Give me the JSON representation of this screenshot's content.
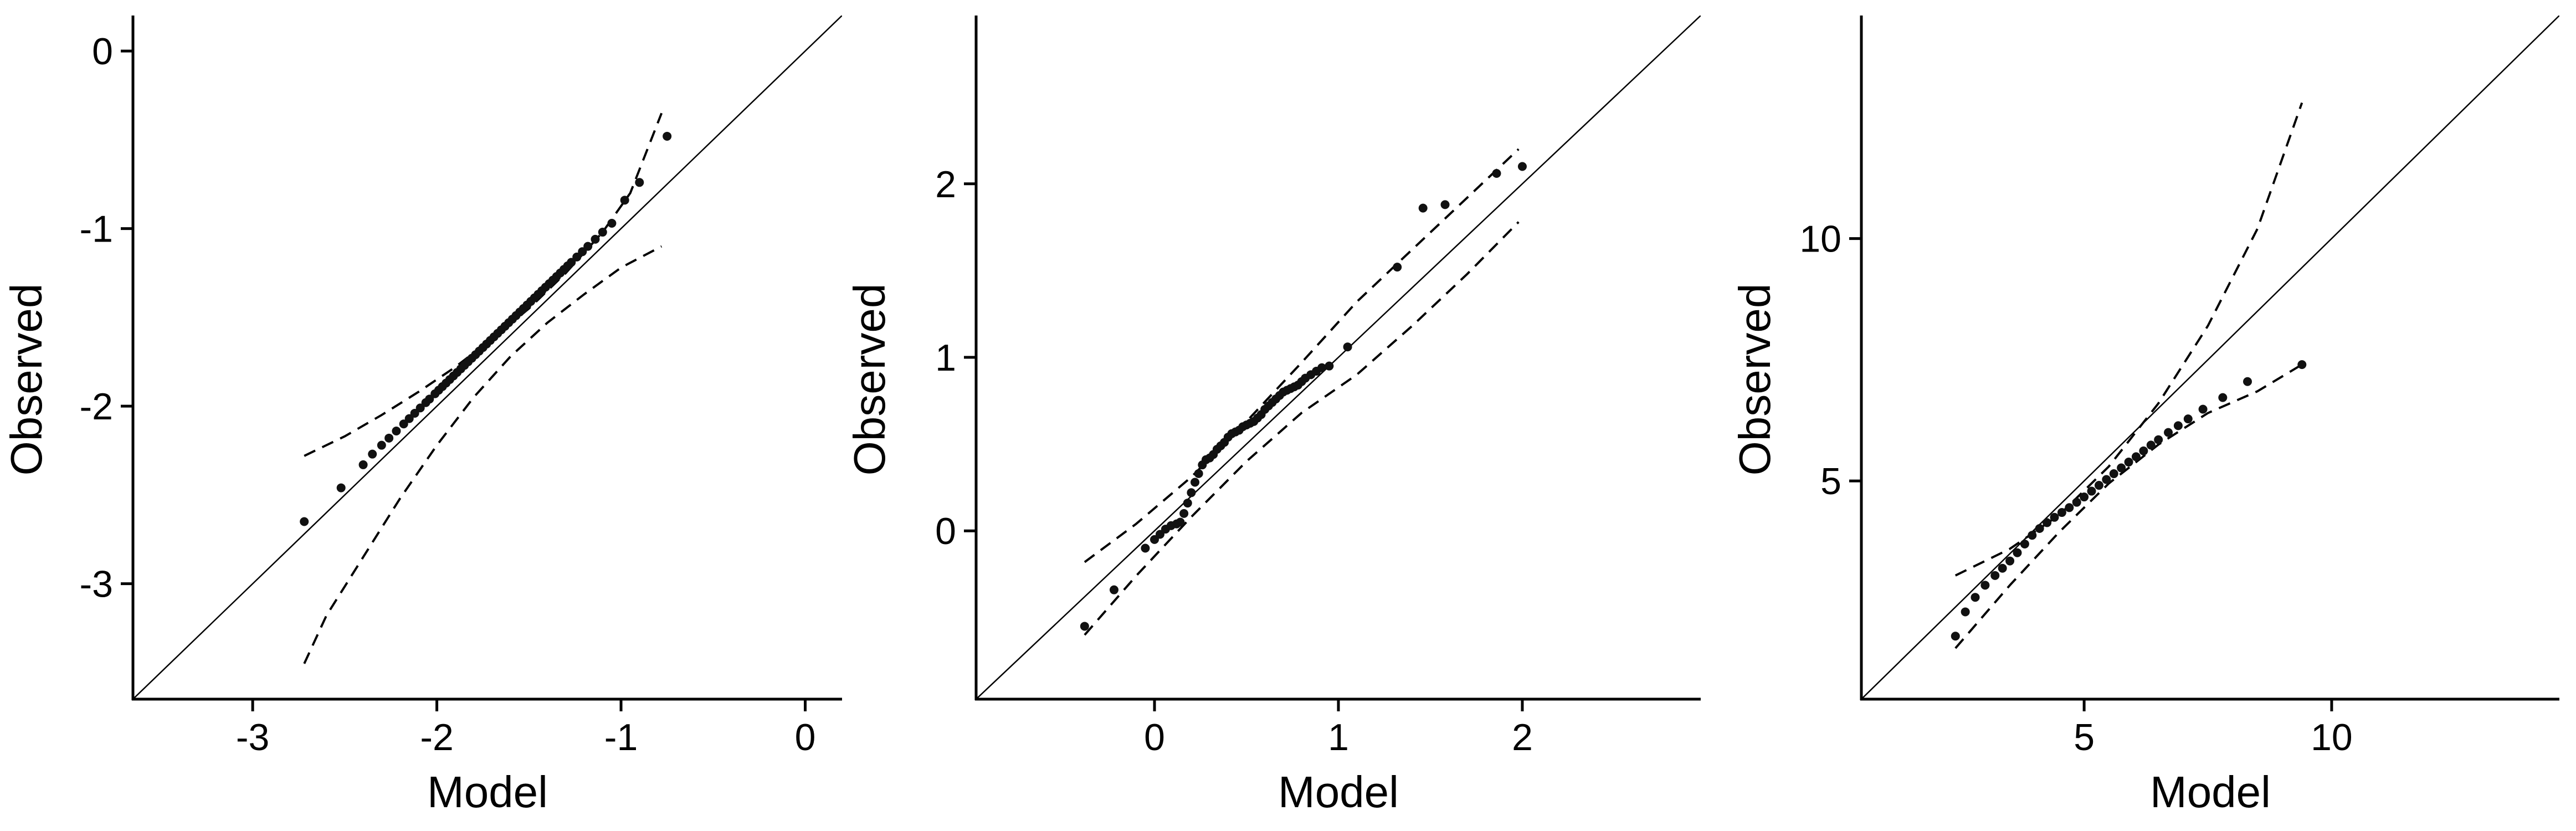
{
  "chart_data": [
    {
      "type": "scatter",
      "title": "",
      "xlabel": "Model",
      "ylabel": "Observed",
      "xlim": [
        -3.65,
        0.2
      ],
      "ylim": [
        -3.65,
        0.2
      ],
      "xticks": [
        -3,
        -2,
        -1,
        0
      ],
      "xtick_labels": [
        "-3",
        "-2",
        "-1",
        "0"
      ],
      "yticks": [
        -3,
        -2,
        -1,
        0
      ],
      "ytick_labels": [
        "-3",
        "-2",
        "-1",
        "0"
      ],
      "grid": false,
      "reference_line": "y = x",
      "points": {
        "x": [
          -2.72,
          -2.52,
          -2.4,
          -2.35,
          -2.3,
          -2.26,
          -2.22,
          -2.18,
          -2.15,
          -2.12,
          -2.09,
          -2.06,
          -2.04,
          -2.01,
          -1.99,
          -1.97,
          -1.95,
          -1.93,
          -1.91,
          -1.89,
          -1.87,
          -1.85,
          -1.83,
          -1.81,
          -1.79,
          -1.77,
          -1.75,
          -1.73,
          -1.71,
          -1.69,
          -1.67,
          -1.65,
          -1.63,
          -1.61,
          -1.59,
          -1.57,
          -1.55,
          -1.53,
          -1.51,
          -1.49,
          -1.47,
          -1.45,
          -1.43,
          -1.41,
          -1.39,
          -1.37,
          -1.35,
          -1.33,
          -1.31,
          -1.29,
          -1.27,
          -1.24,
          -1.21,
          -1.18,
          -1.14,
          -1.1,
          -1.05,
          -0.98,
          -0.9,
          -0.75
        ],
        "y": [
          -2.65,
          -2.46,
          -2.33,
          -2.27,
          -2.22,
          -2.18,
          -2.14,
          -2.1,
          -2.07,
          -2.04,
          -2.01,
          -1.98,
          -1.96,
          -1.93,
          -1.91,
          -1.89,
          -1.87,
          -1.85,
          -1.83,
          -1.81,
          -1.79,
          -1.77,
          -1.75,
          -1.73,
          -1.71,
          -1.69,
          -1.67,
          -1.65,
          -1.63,
          -1.61,
          -1.59,
          -1.57,
          -1.55,
          -1.53,
          -1.51,
          -1.49,
          -1.47,
          -1.45,
          -1.43,
          -1.41,
          -1.39,
          -1.37,
          -1.35,
          -1.33,
          -1.31,
          -1.29,
          -1.27,
          -1.25,
          -1.23,
          -1.21,
          -1.19,
          -1.16,
          -1.13,
          -1.1,
          -1.06,
          -1.02,
          -0.97,
          -0.84,
          -0.74,
          -0.48
        ]
      },
      "envelope_upper": {
        "x": [
          -2.72,
          -2.5,
          -2.3,
          -2.1,
          -1.9,
          -1.7,
          -1.5,
          -1.3,
          -1.1,
          -0.95,
          -0.78
        ],
        "y": [
          -2.28,
          -2.17,
          -2.05,
          -1.92,
          -1.78,
          -1.62,
          -1.45,
          -1.25,
          -1.02,
          -0.8,
          -0.35
        ]
      },
      "envelope_lower": {
        "x": [
          -2.72,
          -2.6,
          -2.4,
          -2.2,
          -2.0,
          -1.8,
          -1.6,
          -1.4,
          -1.2,
          -1.0,
          -0.78
        ],
        "y": [
          -3.45,
          -3.18,
          -2.85,
          -2.52,
          -2.22,
          -1.95,
          -1.72,
          -1.53,
          -1.37,
          -1.22,
          -1.1
        ]
      }
    },
    {
      "type": "scatter",
      "title": "",
      "xlabel": "Model",
      "ylabel": "Observed",
      "xlim": [
        -0.97,
        2.97
      ],
      "ylim": [
        -0.97,
        2.97
      ],
      "xticks": [
        0,
        1,
        2
      ],
      "xtick_labels": [
        "0",
        "1",
        "2"
      ],
      "yticks": [
        0,
        1,
        2
      ],
      "ytick_labels": [
        "0",
        "1",
        "2"
      ],
      "grid": false,
      "reference_line": "y = x",
      "points": {
        "x": [
          -0.38,
          -0.22,
          -0.05,
          0.0,
          0.03,
          0.06,
          0.09,
          0.12,
          0.14,
          0.16,
          0.18,
          0.2,
          0.22,
          0.24,
          0.26,
          0.28,
          0.3,
          0.32,
          0.34,
          0.36,
          0.38,
          0.4,
          0.42,
          0.44,
          0.46,
          0.48,
          0.5,
          0.52,
          0.54,
          0.56,
          0.58,
          0.6,
          0.62,
          0.64,
          0.66,
          0.68,
          0.7,
          0.72,
          0.74,
          0.76,
          0.78,
          0.8,
          0.82,
          0.85,
          0.88,
          0.91,
          0.95,
          1.05,
          1.32,
          1.46,
          1.58,
          1.86,
          2.0
        ],
        "y": [
          -0.55,
          -0.34,
          -0.1,
          -0.05,
          -0.02,
          0.01,
          0.03,
          0.04,
          0.05,
          0.1,
          0.16,
          0.22,
          0.28,
          0.33,
          0.38,
          0.41,
          0.42,
          0.44,
          0.47,
          0.49,
          0.51,
          0.54,
          0.56,
          0.57,
          0.58,
          0.6,
          0.61,
          0.62,
          0.63,
          0.65,
          0.67,
          0.7,
          0.72,
          0.74,
          0.76,
          0.78,
          0.8,
          0.81,
          0.82,
          0.83,
          0.84,
          0.86,
          0.88,
          0.9,
          0.92,
          0.94,
          0.95,
          1.06,
          1.52,
          1.86,
          1.88,
          2.06,
          2.1
        ]
      },
      "envelope_upper": {
        "x": [
          -0.38,
          -0.1,
          0.2,
          0.5,
          0.8,
          1.1,
          1.4,
          1.7,
          1.98
        ],
        "y": [
          -0.18,
          0.04,
          0.31,
          0.63,
          0.97,
          1.32,
          1.62,
          1.92,
          2.2
        ]
      },
      "envelope_lower": {
        "x": [
          -0.38,
          -0.1,
          0.2,
          0.5,
          0.8,
          1.1,
          1.4,
          1.7,
          1.98
        ],
        "y": [
          -0.6,
          -0.26,
          0.08,
          0.4,
          0.68,
          0.9,
          1.18,
          1.48,
          1.78
        ]
      }
    },
    {
      "type": "scatter",
      "title": "",
      "xlabel": "Model",
      "ylabel": "Observed",
      "xlim": [
        0.5,
        14.6
      ],
      "ylim": [
        0.5,
        14.6
      ],
      "xticks": [
        5,
        10
      ],
      "xtick_labels": [
        "5",
        "10"
      ],
      "yticks": [
        5,
        10
      ],
      "ytick_labels": [
        "5",
        "10"
      ],
      "grid": false,
      "reference_line": "y = x",
      "points": {
        "x": [
          2.4,
          2.6,
          2.8,
          3.0,
          3.2,
          3.35,
          3.5,
          3.65,
          3.8,
          3.95,
          4.1,
          4.25,
          4.4,
          4.55,
          4.7,
          4.85,
          5.0,
          5.15,
          5.3,
          5.45,
          5.6,
          5.75,
          5.9,
          6.05,
          6.2,
          6.35,
          6.5,
          6.7,
          6.9,
          7.1,
          7.4,
          7.8,
          8.3,
          9.4
        ],
        "y": [
          1.8,
          2.3,
          2.6,
          2.85,
          3.05,
          3.2,
          3.35,
          3.52,
          3.7,
          3.88,
          4.02,
          4.14,
          4.25,
          4.35,
          4.45,
          4.56,
          4.67,
          4.79,
          4.91,
          5.03,
          5.15,
          5.27,
          5.39,
          5.5,
          5.62,
          5.74,
          5.85,
          6.0,
          6.14,
          6.28,
          6.48,
          6.72,
          7.05,
          7.4
        ]
      },
      "envelope_upper": {
        "x": [
          2.4,
          3.5,
          4.5,
          5.5,
          6.5,
          7.5,
          8.5,
          9.4
        ],
        "y": [
          3.05,
          3.6,
          4.3,
          5.3,
          6.6,
          8.2,
          10.2,
          12.8
        ]
      },
      "envelope_lower": {
        "x": [
          2.4,
          3.5,
          4.5,
          5.5,
          6.5,
          7.5,
          8.5,
          9.4
        ],
        "y": [
          1.55,
          2.85,
          3.95,
          4.95,
          5.75,
          6.4,
          6.85,
          7.4
        ]
      }
    }
  ]
}
